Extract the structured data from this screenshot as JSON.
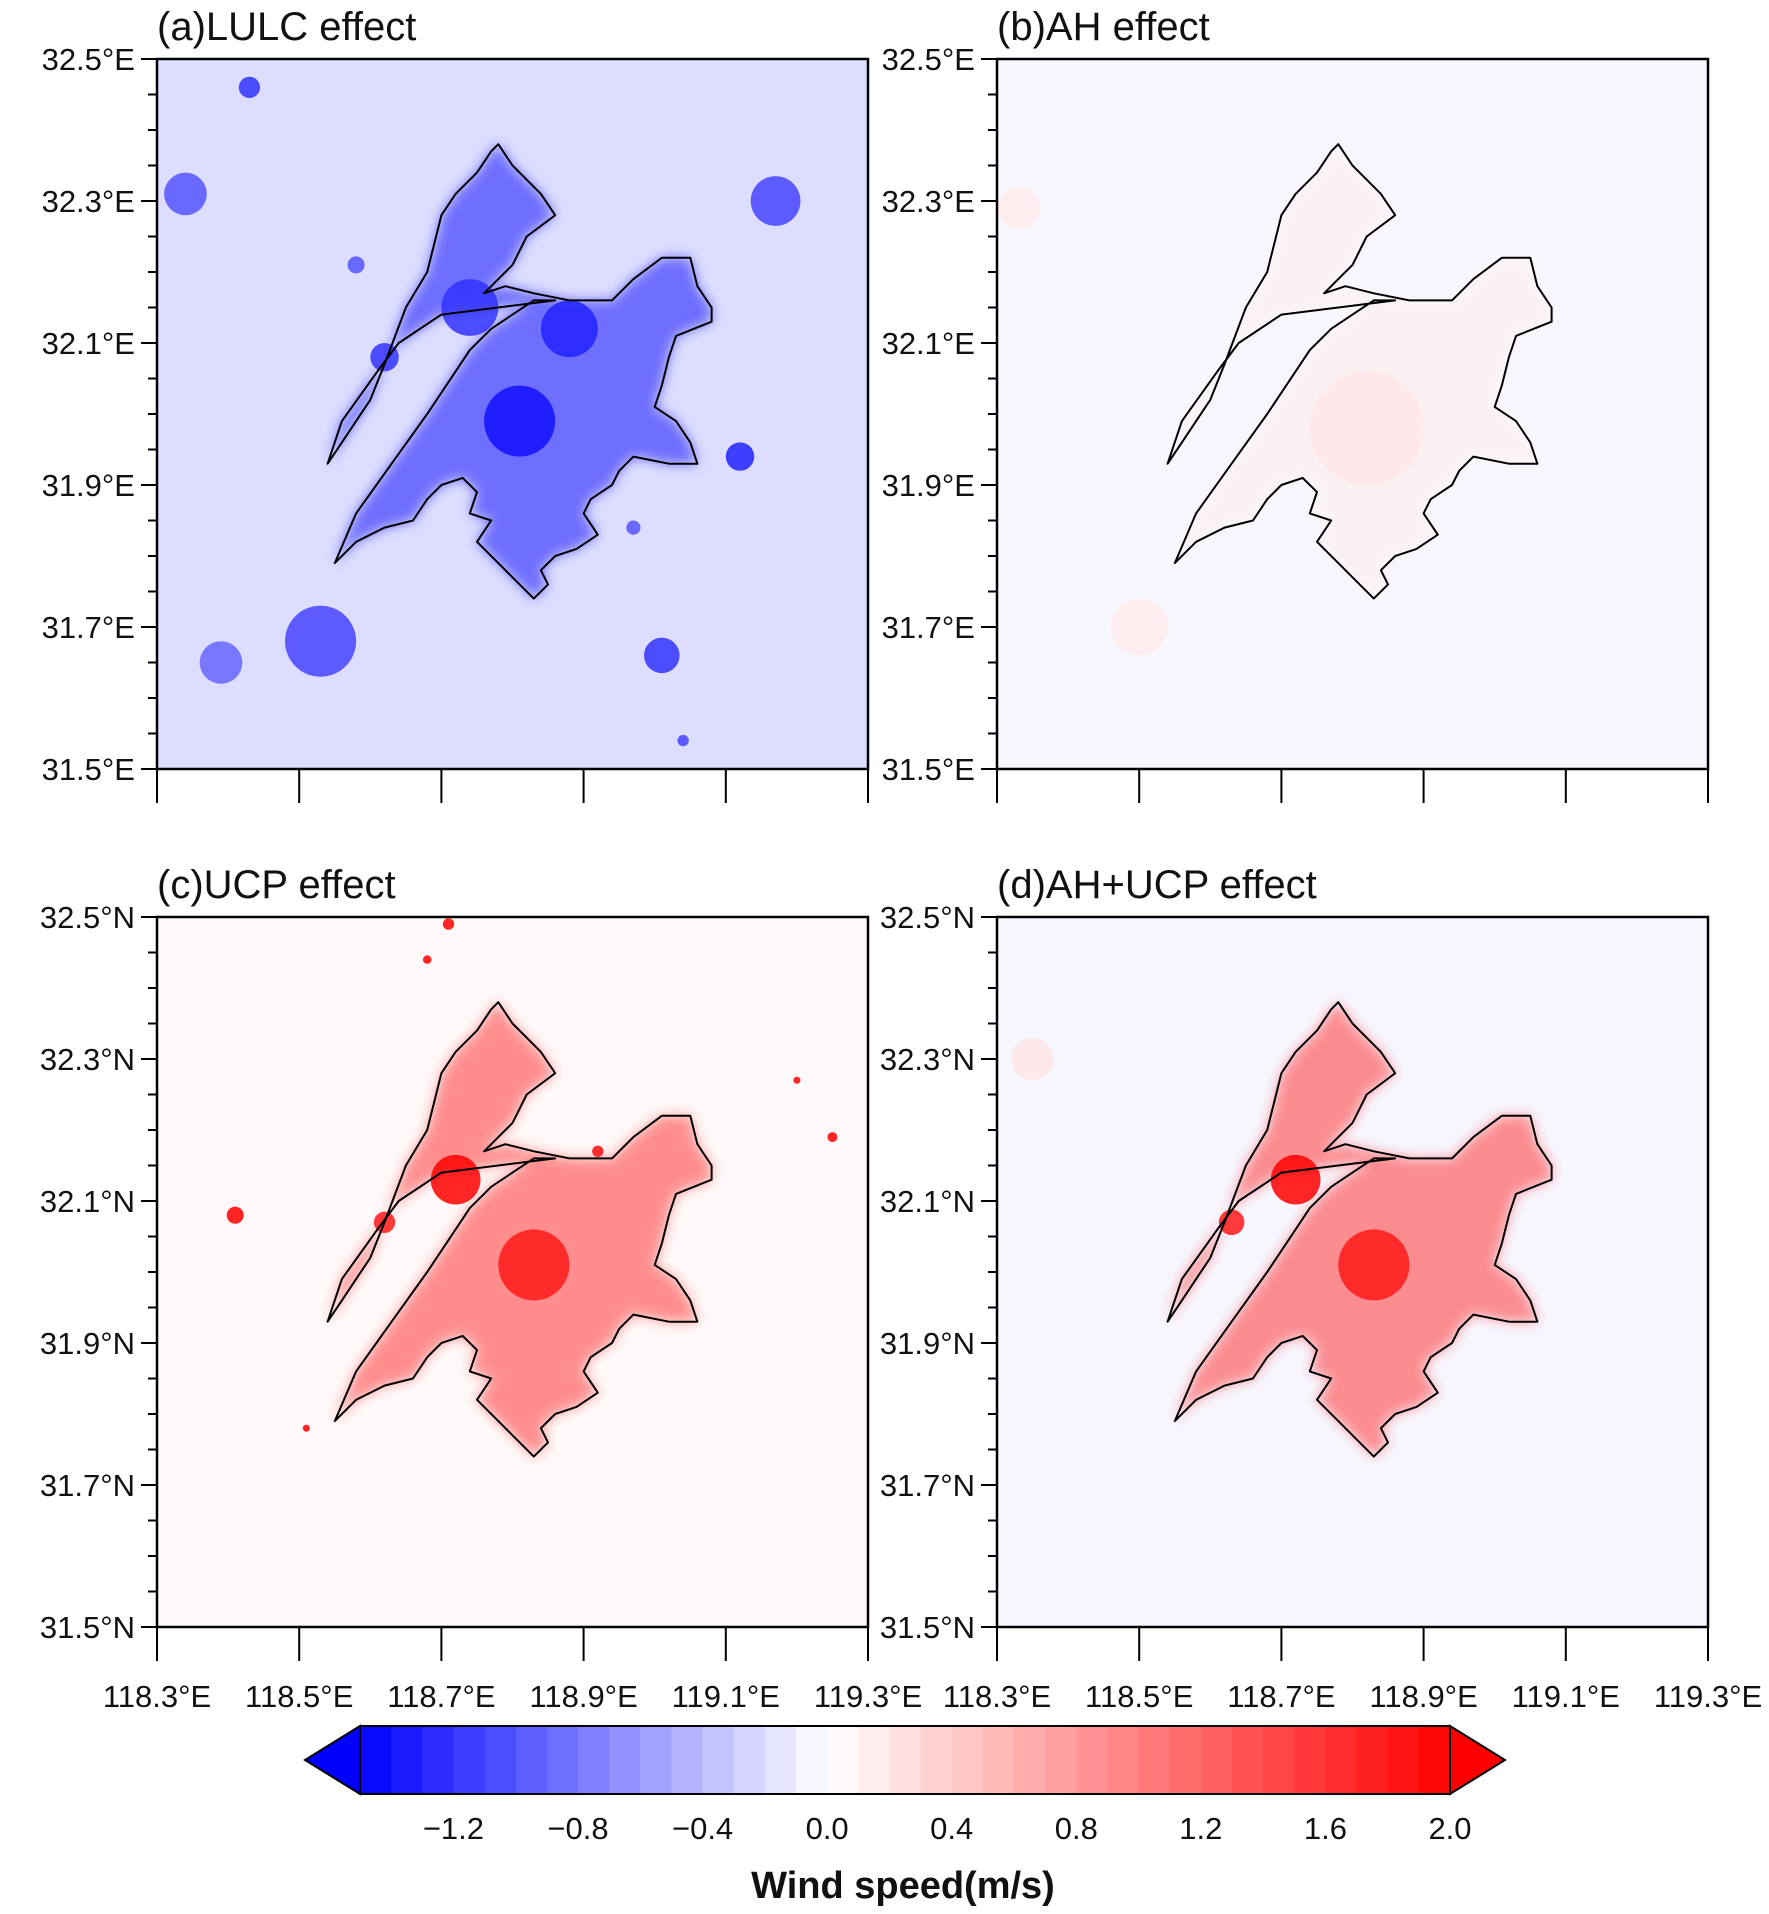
{
  "chart_data": {
    "type": "heatmap",
    "panels": [
      {
        "id": "a",
        "title": "(a)LULC effect",
        "background_value": -0.2,
        "urban_core_value": -1.4,
        "blobs": [
          {
            "lon": 118.81,
            "lat": 31.99,
            "value": -1.4,
            "r": 0.05
          },
          {
            "lon": 118.74,
            "lat": 32.15,
            "value": -1.2,
            "r": 0.04
          },
          {
            "lon": 118.88,
            "lat": 32.12,
            "value": -1.3,
            "r": 0.04
          },
          {
            "lon": 118.62,
            "lat": 32.08,
            "value": -1.2,
            "r": 0.02
          },
          {
            "lon": 118.43,
            "lat": 32.46,
            "value": -1.2,
            "r": 0.015
          },
          {
            "lon": 118.34,
            "lat": 32.31,
            "value": -1.0,
            "r": 0.03
          },
          {
            "lon": 119.17,
            "lat": 32.3,
            "value": -1.1,
            "r": 0.035
          },
          {
            "lon": 119.12,
            "lat": 31.94,
            "value": -1.3,
            "r": 0.02
          },
          {
            "lon": 118.53,
            "lat": 31.68,
            "value": -1.1,
            "r": 0.05
          },
          {
            "lon": 118.39,
            "lat": 31.65,
            "value": -0.9,
            "r": 0.03
          },
          {
            "lon": 119.01,
            "lat": 31.66,
            "value": -1.2,
            "r": 0.025
          },
          {
            "lon": 118.58,
            "lat": 32.21,
            "value": -1.0,
            "r": 0.012
          },
          {
            "lon": 118.97,
            "lat": 31.84,
            "value": -1.0,
            "r": 0.01
          },
          {
            "lon": 119.04,
            "lat": 31.54,
            "value": -1.1,
            "r": 0.008
          }
        ]
      },
      {
        "id": "b",
        "title": "(b)AH effect",
        "background_value": -0.05,
        "urban_core_value": 0.15,
        "blobs": [
          {
            "lon": 118.82,
            "lat": 31.98,
            "value": 0.2,
            "r": 0.08
          },
          {
            "lon": 118.5,
            "lat": 31.7,
            "value": 0.15,
            "r": 0.04
          },
          {
            "lon": 118.33,
            "lat": 32.29,
            "value": 0.15,
            "r": 0.03
          }
        ]
      },
      {
        "id": "c",
        "title": "(c)UCP effect",
        "background_value": 0.05,
        "urban_core_value": 1.6,
        "blobs": [
          {
            "lon": 118.83,
            "lat": 32.01,
            "value": 1.8,
            "r": 0.05
          },
          {
            "lon": 118.72,
            "lat": 32.13,
            "value": 2.0,
            "r": 0.035
          },
          {
            "lon": 118.62,
            "lat": 32.07,
            "value": 1.8,
            "r": 0.015
          },
          {
            "lon": 118.41,
            "lat": 32.08,
            "value": 2.0,
            "r": 0.012
          },
          {
            "lon": 118.71,
            "lat": 32.49,
            "value": 2.0,
            "r": 0.008
          },
          {
            "lon": 118.68,
            "lat": 32.44,
            "value": 2.0,
            "r": 0.006
          },
          {
            "lon": 119.25,
            "lat": 32.19,
            "value": 2.0,
            "r": 0.007
          },
          {
            "lon": 119.2,
            "lat": 32.27,
            "value": 2.0,
            "r": 0.005
          },
          {
            "lon": 118.51,
            "lat": 31.78,
            "value": 2.0,
            "r": 0.005
          },
          {
            "lon": 118.92,
            "lat": 32.17,
            "value": 1.9,
            "r": 0.008
          }
        ]
      },
      {
        "id": "d",
        "title": "(d)AH+UCP effect",
        "background_value": -0.05,
        "urban_core_value": 1.6,
        "blobs": [
          {
            "lon": 118.83,
            "lat": 32.01,
            "value": 1.8,
            "r": 0.05
          },
          {
            "lon": 118.72,
            "lat": 32.13,
            "value": 2.0,
            "r": 0.035
          },
          {
            "lon": 118.63,
            "lat": 32.07,
            "value": 1.8,
            "r": 0.018
          },
          {
            "lon": 118.35,
            "lat": 32.3,
            "value": 0.2,
            "r": 0.03
          }
        ]
      }
    ],
    "top_y_tick_labels": [
      "32.5°E",
      "32.3°E",
      "32.1°E",
      "31.9°E",
      "31.7°E",
      "31.5°E"
    ],
    "bottom_y_tick_labels": [
      "32.5°N",
      "32.3°N",
      "32.1°N",
      "31.9°N",
      "31.7°N",
      "31.5°N"
    ],
    "x_tick_labels": [
      "118.3°E",
      "118.5°E",
      "118.7°E",
      "118.9°E",
      "119.1°E",
      "119.3°E"
    ],
    "xlim": [
      118.3,
      119.3
    ],
    "ylim": [
      31.5,
      32.5
    ],
    "colorbar": {
      "title": "Wind speed(m/s)",
      "min": -1.5,
      "max": 2.0,
      "step": 0.1,
      "extend": "both",
      "tick_labels": [
        "−1.2",
        "−0.8",
        "−0.4",
        "0.0",
        "0.4",
        "0.8",
        "1.2",
        "1.6",
        "2.0"
      ],
      "tick_values": [
        -1.2,
        -0.8,
        -0.4,
        0.0,
        0.4,
        0.8,
        1.2,
        1.6,
        2.0
      ],
      "negative_color": "#0000ff",
      "zero_color": "#ffffff",
      "positive_color": "#ff0000"
    },
    "boundary_outline": [
      [
        118.7,
        32.14
      ],
      [
        118.64,
        32.1
      ],
      [
        118.61,
        32.06
      ],
      [
        118.56,
        31.99
      ],
      [
        118.54,
        31.93
      ],
      [
        118.56,
        31.96
      ],
      [
        118.58,
        31.99
      ],
      [
        118.6,
        32.02
      ],
      [
        118.62,
        32.07
      ],
      [
        118.65,
        32.15
      ],
      [
        118.68,
        32.2
      ],
      [
        118.69,
        32.24
      ],
      [
        118.7,
        32.28
      ],
      [
        118.72,
        32.31
      ],
      [
        118.75,
        32.34
      ],
      [
        118.77,
        32.37
      ],
      [
        118.78,
        32.38
      ],
      [
        118.8,
        32.35
      ],
      [
        118.82,
        32.33
      ],
      [
        118.84,
        32.31
      ],
      [
        118.86,
        32.28
      ],
      [
        118.82,
        32.25
      ],
      [
        118.8,
        32.21
      ],
      [
        118.78,
        32.19
      ],
      [
        118.76,
        32.17
      ],
      [
        118.79,
        32.18
      ],
      [
        118.83,
        32.17
      ],
      [
        118.88,
        32.16
      ],
      [
        118.94,
        32.16
      ],
      [
        118.97,
        32.19
      ],
      [
        119.01,
        32.22
      ],
      [
        119.05,
        32.22
      ],
      [
        119.06,
        32.18
      ],
      [
        119.08,
        32.15
      ],
      [
        119.08,
        32.13
      ],
      [
        119.03,
        32.11
      ],
      [
        119.02,
        32.08
      ],
      [
        119.01,
        32.04
      ],
      [
        119.0,
        32.01
      ],
      [
        119.03,
        31.99
      ],
      [
        119.05,
        31.96
      ],
      [
        119.06,
        31.93
      ],
      [
        119.02,
        31.93
      ],
      [
        118.97,
        31.94
      ],
      [
        118.95,
        31.92
      ],
      [
        118.94,
        31.9
      ],
      [
        118.91,
        31.88
      ],
      [
        118.9,
        31.86
      ],
      [
        118.92,
        31.83
      ],
      [
        118.89,
        31.81
      ],
      [
        118.86,
        31.8
      ],
      [
        118.84,
        31.78
      ],
      [
        118.85,
        31.76
      ],
      [
        118.83,
        31.74
      ],
      [
        118.8,
        31.77
      ],
      [
        118.78,
        31.79
      ],
      [
        118.75,
        31.82
      ],
      [
        118.77,
        31.85
      ],
      [
        118.74,
        31.86
      ],
      [
        118.75,
        31.89
      ],
      [
        118.73,
        31.91
      ],
      [
        118.7,
        31.9
      ],
      [
        118.68,
        31.88
      ],
      [
        118.66,
        31.85
      ],
      [
        118.62,
        31.84
      ],
      [
        118.58,
        31.82
      ],
      [
        118.55,
        31.79
      ],
      [
        118.58,
        31.86
      ],
      [
        118.63,
        31.93
      ],
      [
        118.68,
        32.0
      ],
      [
        118.72,
        32.06
      ],
      [
        118.74,
        32.09
      ],
      [
        118.77,
        32.12
      ],
      [
        118.8,
        32.14
      ],
      [
        118.83,
        32.16
      ],
      [
        118.86,
        32.16
      ]
    ]
  }
}
